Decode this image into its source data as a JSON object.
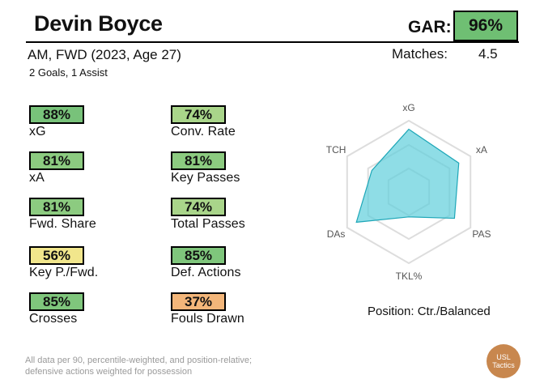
{
  "player": {
    "name": "Devin Boyce",
    "subtitle": "AM, FWD (2023, Age 27)",
    "contributions": "2 Goals,  1 Assist"
  },
  "gar": {
    "label": "GAR:",
    "value": "96%",
    "color": "#6fbf73"
  },
  "matches": {
    "label": "Matches:",
    "value": "4.5"
  },
  "metrics": [
    {
      "pct": "88%",
      "label": "xG",
      "color": "#78c27a"
    },
    {
      "pct": "74%",
      "label": "Conv. Rate",
      "color": "#a9d58a"
    },
    {
      "pct": "81%",
      "label": "xA",
      "color": "#8ccb80"
    },
    {
      "pct": "81%",
      "label": "Key Passes",
      "color": "#8ccb80"
    },
    {
      "pct": "81%",
      "label": "Fwd. Share",
      "color": "#8ccb80"
    },
    {
      "pct": "74%",
      "label": "Total Passes",
      "color": "#a9d58a"
    },
    {
      "pct": "56%",
      "label": "Key P./Fwd.",
      "color": "#f1e68c"
    },
    {
      "pct": "85%",
      "label": "Def. Actions",
      "color": "#7fc67c"
    },
    {
      "pct": "85%",
      "label": "Crosses",
      "color": "#7fc67c"
    },
    {
      "pct": "37%",
      "label": "Fouls Drawn",
      "color": "#f3b67a"
    }
  ],
  "radar": {
    "axes": [
      "xG",
      "xA",
      "PAS",
      "TKL%",
      "DAs",
      "TCH"
    ],
    "values": [
      0.88,
      0.81,
      0.74,
      0.35,
      0.85,
      0.6
    ],
    "fill": "#5fcfdc",
    "stroke": "#1ea7b8"
  },
  "position_text": "Position: Ctr./Balanced",
  "footnote": {
    "line1": "All data per 90, percentile-weighted, and position-relative;",
    "line2": "defensive actions weighted for possession"
  },
  "logo": {
    "line1": "USL",
    "line2": "Tactics"
  }
}
